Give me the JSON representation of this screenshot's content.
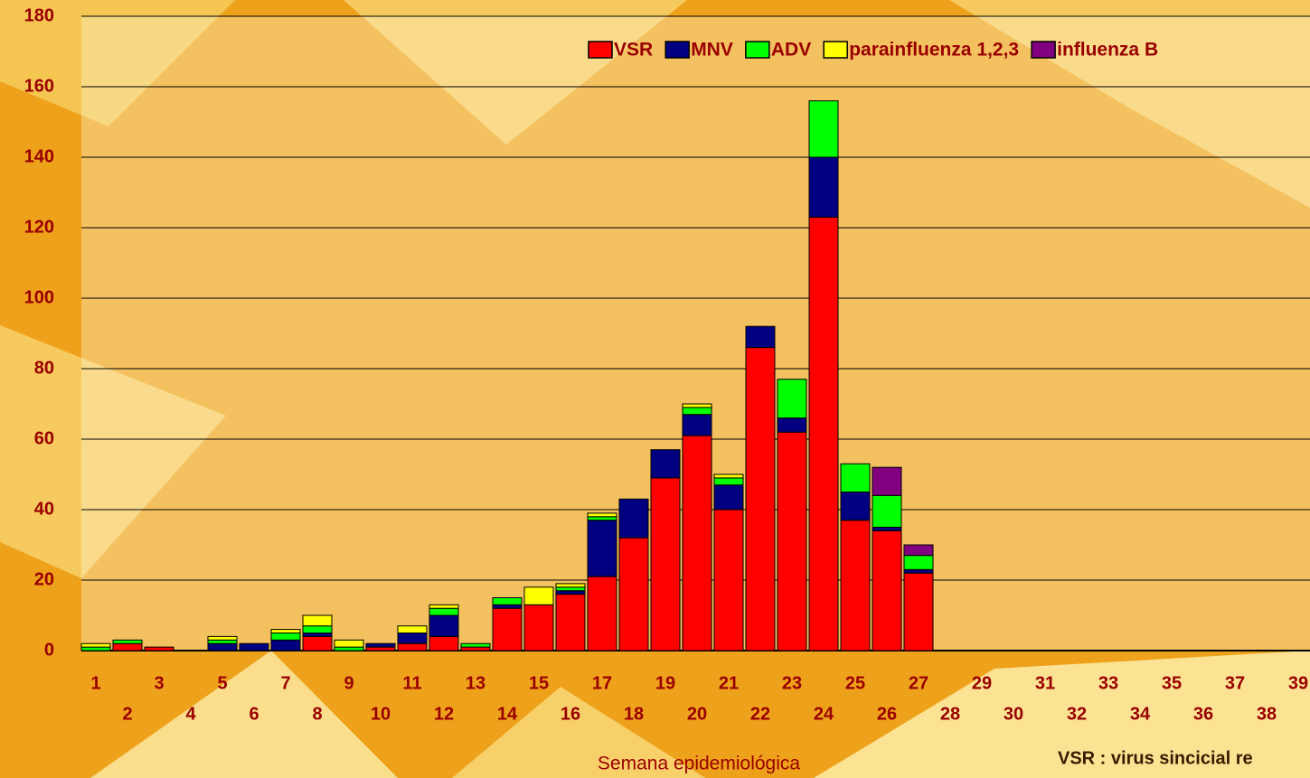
{
  "chart_data": {
    "type": "stacked_bar",
    "x_label": "Semana epidemiológica",
    "annotation": "VSR : virus sincicial re",
    "categories": [
      "1",
      "2",
      "3",
      "4",
      "5",
      "6",
      "7",
      "8",
      "9",
      "10",
      "11",
      "12",
      "13",
      "14",
      "15",
      "16",
      "17",
      "18",
      "19",
      "20",
      "21",
      "22",
      "23",
      "24",
      "25",
      "26",
      "27",
      "28",
      "29",
      "30",
      "31",
      "32",
      "33",
      "34",
      "35",
      "36",
      "37",
      "38",
      "39"
    ],
    "series": [
      {
        "name": "VSR",
        "color": "#ff0000",
        "values": [
          0,
          2,
          1,
          0,
          0,
          0,
          0,
          4,
          0,
          1,
          2,
          4,
          1,
          12,
          13,
          16,
          21,
          32,
          49,
          61,
          40,
          86,
          62,
          123,
          37,
          34,
          22,
          0,
          0,
          0,
          0,
          0,
          0,
          0,
          0,
          0,
          0,
          0,
          0
        ]
      },
      {
        "name": "MNV",
        "color": "#000080",
        "values": [
          0,
          0,
          0,
          0,
          2,
          2,
          3,
          1,
          0,
          1,
          3,
          6,
          0,
          1,
          0,
          1,
          16,
          11,
          8,
          6,
          7,
          6,
          4,
          17,
          8,
          1,
          1,
          0,
          0,
          0,
          0,
          0,
          0,
          0,
          0,
          0,
          0,
          0,
          0
        ]
      },
      {
        "name": "ADV",
        "color": "#00ff00",
        "values": [
          1,
          1,
          0,
          0,
          1,
          0,
          2,
          2,
          1,
          0,
          0,
          2,
          1,
          2,
          0,
          1,
          1,
          0,
          0,
          2,
          2,
          0,
          11,
          16,
          8,
          9,
          4,
          0,
          0,
          0,
          0,
          0,
          0,
          0,
          0,
          0,
          0,
          0,
          0
        ]
      },
      {
        "name": "parainfluenza 1,2,3",
        "color": "#ffff00",
        "values": [
          1,
          0,
          0,
          0,
          1,
          0,
          1,
          3,
          2,
          0,
          2,
          1,
          0,
          0,
          5,
          1,
          1,
          0,
          0,
          1,
          1,
          0,
          0,
          0,
          0,
          0,
          0,
          0,
          0,
          0,
          0,
          0,
          0,
          0,
          0,
          0,
          0,
          0,
          0
        ]
      },
      {
        "name": "influenza B",
        "color": "#800080",
        "values": [
          0,
          0,
          0,
          0,
          0,
          0,
          0,
          0,
          0,
          0,
          0,
          0,
          0,
          0,
          0,
          0,
          0,
          0,
          0,
          0,
          0,
          0,
          0,
          0,
          0,
          8,
          3,
          0,
          0,
          0,
          0,
          0,
          0,
          0,
          0,
          0,
          0,
          0,
          0
        ]
      }
    ],
    "ylim": [
      0,
      180
    ],
    "yticks": [
      0,
      20,
      40,
      60,
      80,
      100,
      120,
      140,
      160,
      180
    ],
    "grid": true,
    "legend": "top-right"
  }
}
